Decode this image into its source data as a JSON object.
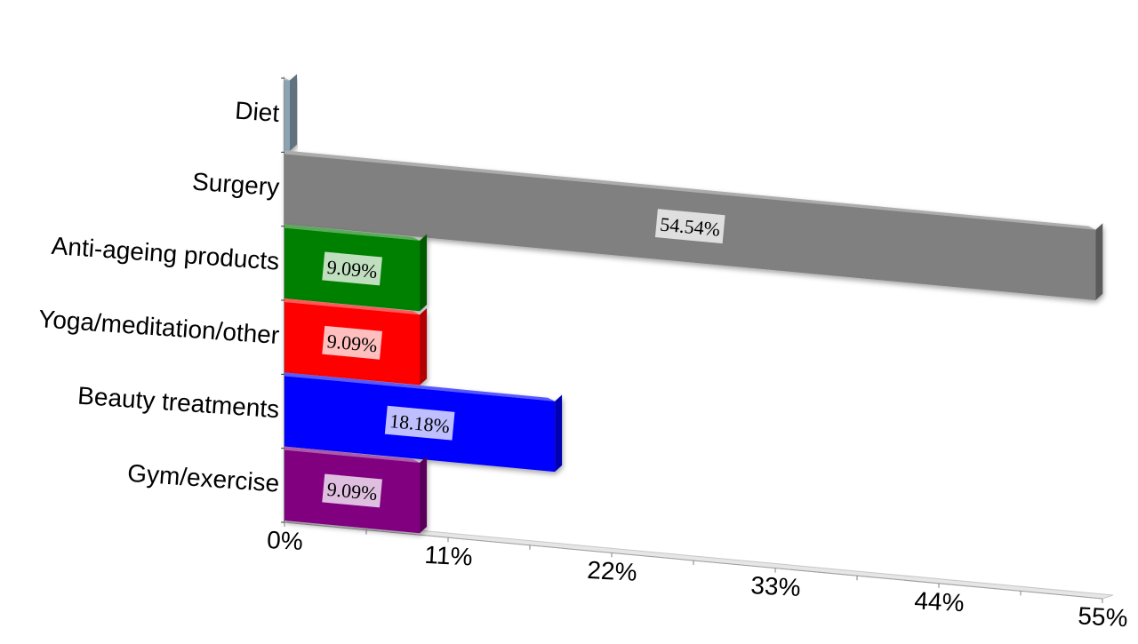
{
  "chart_data": {
    "type": "bar",
    "orientation": "horizontal",
    "style": "3d-perspective",
    "title": "",
    "xlabel": "",
    "ylabel": "",
    "categories": [
      "Diet",
      "Surgery",
      "Anti-ageing products",
      "Yoga/meditation/other",
      "Beauty treatments",
      "Gym/exercise"
    ],
    "values": [
      0,
      54.54,
      9.09,
      9.09,
      18.18,
      9.09
    ],
    "value_labels": [
      "",
      "54.54%",
      "9.09%",
      "9.09%",
      "18.18%",
      "9.09%"
    ],
    "colors": [
      "#8aa4b4",
      "#808080",
      "#008000",
      "#ff0000",
      "#0000ff",
      "#800080"
    ],
    "xlim": [
      0,
      55
    ],
    "x_ticks": [
      0,
      11,
      22,
      33,
      44,
      55
    ],
    "x_tick_labels": [
      "0%",
      "11%",
      "22%",
      "33%",
      "44%",
      "55%"
    ],
    "grid": false,
    "legend": "none"
  }
}
